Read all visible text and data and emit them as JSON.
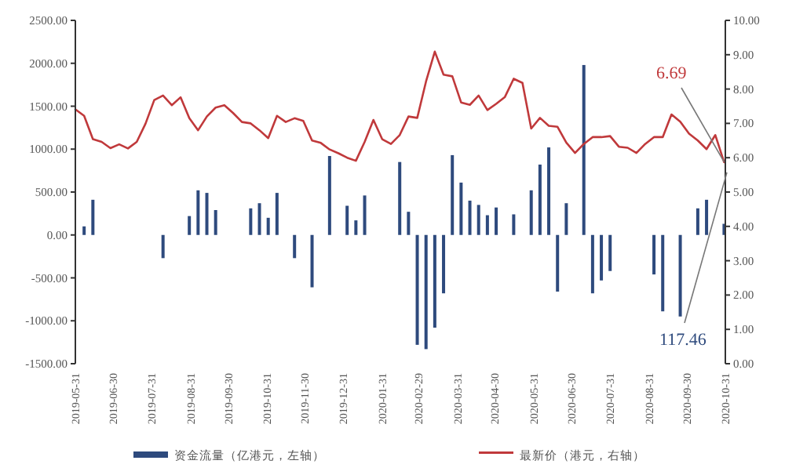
{
  "chart_data": {
    "type": "bar",
    "x": [
      "2019-05-31",
      "2019-06-07",
      "2019-06-14",
      "2019-06-21",
      "2019-06-28",
      "2019-07-05",
      "2019-07-12",
      "2019-07-19",
      "2019-07-26",
      "2019-08-02",
      "2019-08-09",
      "2019-08-16",
      "2019-08-23",
      "2019-08-30",
      "2019-09-06",
      "2019-09-13",
      "2019-09-20",
      "2019-09-27",
      "2019-10-04",
      "2019-10-11",
      "2019-10-18",
      "2019-10-25",
      "2019-11-01",
      "2019-11-08",
      "2019-11-15",
      "2019-11-22",
      "2019-11-29",
      "2019-12-06",
      "2019-12-13",
      "2019-12-20",
      "2019-12-27",
      "2020-01-03",
      "2020-01-10",
      "2020-01-17",
      "2020-01-24",
      "2020-01-31",
      "2020-02-07",
      "2020-02-14",
      "2020-02-21",
      "2020-02-28",
      "2020-03-06",
      "2020-03-13",
      "2020-03-20",
      "2020-03-27",
      "2020-04-03",
      "2020-04-10",
      "2020-04-17",
      "2020-04-24",
      "2020-05-01",
      "2020-05-08",
      "2020-05-15",
      "2020-05-22",
      "2020-05-29",
      "2020-06-05",
      "2020-06-12",
      "2020-06-19",
      "2020-06-26",
      "2020-07-03",
      "2020-07-10",
      "2020-07-17",
      "2020-07-24",
      "2020-07-31",
      "2020-08-07",
      "2020-08-14",
      "2020-08-21",
      "2020-08-28",
      "2020-09-04",
      "2020-09-11",
      "2020-09-18",
      "2020-09-25",
      "2020-10-02",
      "2020-10-09",
      "2020-10-16",
      "2020-10-23",
      "2020-10-30"
    ],
    "series": [
      {
        "name": "资金流量（亿港元，左轴）",
        "type": "bar",
        "color": "#2e4a7d",
        "x": [
          "2019-06-07",
          "2019-06-14",
          "2019-08-09",
          "2019-08-30",
          "2019-09-06",
          "2019-09-13",
          "2019-09-20",
          "2019-10-18",
          "2019-10-25",
          "2019-11-01",
          "2019-11-08",
          "2019-11-22",
          "2019-12-06",
          "2019-12-20",
          "2020-01-03",
          "2020-01-10",
          "2020-01-17",
          "2020-02-14",
          "2020-02-21",
          "2020-02-28",
          "2020-03-06",
          "2020-03-13",
          "2020-03-20",
          "2020-03-27",
          "2020-04-03",
          "2020-04-10",
          "2020-04-17",
          "2020-04-24",
          "2020-05-01",
          "2020-05-15",
          "2020-05-29",
          "2020-06-05",
          "2020-06-12",
          "2020-06-19",
          "2020-06-26",
          "2020-07-10",
          "2020-07-17",
          "2020-07-24",
          "2020-07-31",
          "2020-09-04",
          "2020-09-11",
          "2020-09-25",
          "2020-10-09",
          "2020-10-16",
          "2020-10-30"
        ],
        "values": [
          100,
          410,
          -270,
          220,
          520,
          490,
          290,
          310,
          370,
          200,
          490,
          -270,
          -610,
          920,
          340,
          170,
          460,
          850,
          270,
          -1280,
          -1330,
          -1080,
          -680,
          930,
          610,
          400,
          350,
          230,
          320,
          240,
          520,
          820,
          1020,
          -660,
          370,
          1980,
          -680,
          -530,
          -420,
          -460,
          -890,
          -950,
          310,
          410,
          130
        ]
      },
      {
        "name": "最新价（港元，右轴）",
        "type": "line",
        "axis": "y2",
        "color": "#c0393b",
        "values": [
          7.41,
          7.22,
          6.54,
          6.46,
          6.28,
          6.39,
          6.27,
          6.46,
          6.99,
          7.68,
          7.81,
          7.53,
          7.76,
          7.15,
          6.8,
          7.2,
          7.46,
          7.53,
          7.3,
          7.04,
          7.0,
          6.8,
          6.57,
          7.22,
          7.04,
          7.15,
          7.07,
          6.5,
          6.43,
          6.24,
          6.13,
          6.0,
          5.91,
          6.46,
          7.1,
          6.54,
          6.4,
          6.66,
          7.2,
          7.16,
          8.22,
          9.09,
          8.42,
          8.37,
          7.61,
          7.54,
          7.81,
          7.39,
          7.57,
          7.77,
          8.3,
          8.18,
          6.85,
          7.16,
          6.93,
          6.9,
          6.44,
          6.14,
          6.4,
          6.6,
          6.6,
          6.63,
          6.32,
          6.29,
          6.14,
          6.4,
          6.6,
          6.6,
          7.26,
          7.05,
          6.7,
          6.5,
          6.25,
          6.66,
          5.87
        ]
      }
    ],
    "xlim": [
      "2019-05-31",
      "2020-10-31"
    ],
    "xticks": [
      {
        "value": "2019-05-31",
        "label": "2019-05-31"
      },
      {
        "value": "2019-06-30",
        "label": "2019-06-30"
      },
      {
        "value": "2019-07-31",
        "label": "2019-07-31"
      },
      {
        "value": "2019-08-31",
        "label": "2019-08-31"
      },
      {
        "value": "2019-09-30",
        "label": "2019-09-30"
      },
      {
        "value": "2019-10-31",
        "label": "2019-10-31"
      },
      {
        "value": "2019-11-30",
        "label": "2019-11-30"
      },
      {
        "value": "2019-12-31",
        "label": "2019-12-31"
      },
      {
        "value": "2020-01-31",
        "label": "2020-01-31"
      },
      {
        "value": "2020-02-29",
        "label": "2020-02-29"
      },
      {
        "value": "2020-03-31",
        "label": "2020-03-31"
      },
      {
        "value": "2020-04-30",
        "label": "2020-04-30"
      },
      {
        "value": "2020-05-31",
        "label": "2020-05-31"
      },
      {
        "value": "2020-06-30",
        "label": "2020-06-30"
      },
      {
        "value": "2020-07-31",
        "label": "2020-07-31"
      },
      {
        "value": "2020-08-31",
        "label": "2020-08-31"
      },
      {
        "value": "2020-09-30",
        "label": "2020-09-30"
      },
      {
        "value": "2020-10-31",
        "label": "2020-10-31"
      }
    ],
    "ylim": [
      -1500,
      2500
    ],
    "yticks": [
      {
        "value": -1500,
        "label": "-1500.00"
      },
      {
        "value": -1000,
        "label": "-1000.00"
      },
      {
        "value": -500,
        "label": "-500.00"
      },
      {
        "value": 0,
        "label": "0.00"
      },
      {
        "value": 500,
        "label": "500.00"
      },
      {
        "value": 1000,
        "label": "1000.00"
      },
      {
        "value": 1500,
        "label": "1500.00"
      },
      {
        "value": 2000,
        "label": "2000.00"
      },
      {
        "value": 2500,
        "label": "2500.00"
      }
    ],
    "y2lim": [
      0,
      10
    ],
    "y2ticks": [
      {
        "value": 0,
        "label": "0.00"
      },
      {
        "value": 1,
        "label": "1.00"
      },
      {
        "value": 2,
        "label": "2.00"
      },
      {
        "value": 3,
        "label": "3.00"
      },
      {
        "value": 4,
        "label": "4.00"
      },
      {
        "value": 5,
        "label": "5.00"
      },
      {
        "value": 6,
        "label": "6.00"
      },
      {
        "value": 7,
        "label": "7.00"
      },
      {
        "value": 8,
        "label": "8.00"
      },
      {
        "value": 9,
        "label": "9.00"
      },
      {
        "value": 10,
        "label": "10.00"
      }
    ],
    "annotations": [
      {
        "text": "6.69",
        "x": "2020-10-30",
        "y": 850
      },
      "117.46"
    ],
    "legend": "bottom",
    "grid": false,
    "marker": "none",
    "line_style": "solid"
  }
}
